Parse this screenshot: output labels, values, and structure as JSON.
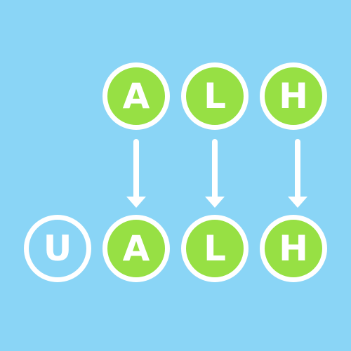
{
  "colors": {
    "background": "#8ad5f6",
    "filled": "#97e044",
    "outline": "#ffffff"
  },
  "top_row": [
    {
      "letter": "A",
      "fill": "green"
    },
    {
      "letter": "L",
      "fill": "green"
    },
    {
      "letter": "H",
      "fill": "green"
    }
  ],
  "bottom_row": [
    {
      "letter": "U",
      "fill": "blue"
    },
    {
      "letter": "A",
      "fill": "green"
    },
    {
      "letter": "L",
      "fill": "green"
    },
    {
      "letter": "H",
      "fill": "green"
    }
  ]
}
